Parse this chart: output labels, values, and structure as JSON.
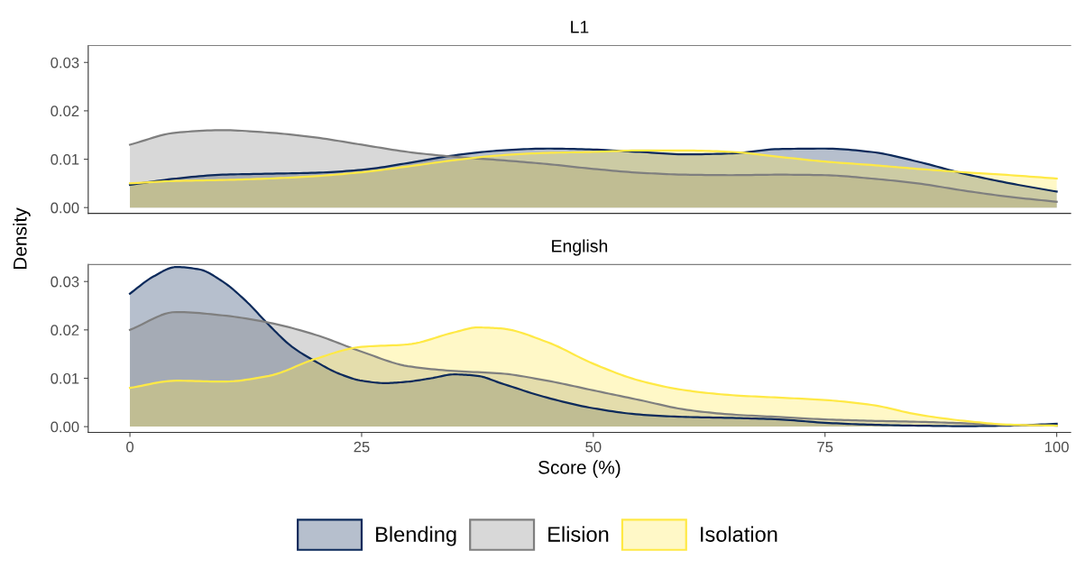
{
  "chart_data": [
    {
      "type": "area",
      "title": "L1",
      "ylabel": "Density",
      "xlim": [
        -4.5,
        101.5
      ],
      "ylim": [
        -0.0012,
        0.0335
      ],
      "yticks": [
        {
          "value": 0,
          "label": "0.00"
        },
        {
          "value": 0.01,
          "label": "0.01"
        },
        {
          "value": 0.02,
          "label": "0.02"
        },
        {
          "value": 0.03,
          "label": "0.03"
        }
      ],
      "xticks": [
        0,
        25,
        50,
        75,
        100
      ],
      "tick_labels": "y",
      "grid": false,
      "legend": "bottom",
      "x": [
        0,
        5,
        10,
        15,
        20,
        25,
        30,
        35,
        40,
        45,
        50,
        55,
        60,
        65,
        70,
        75,
        80,
        85,
        90,
        95,
        100
      ],
      "series": [
        {
          "name": "Blending",
          "color": "#0c2a5b",
          "values": [
            0.0047,
            0.006,
            0.0068,
            0.007,
            0.0072,
            0.0078,
            0.0092,
            0.0108,
            0.0118,
            0.0122,
            0.012,
            0.0115,
            0.011,
            0.0112,
            0.0121,
            0.0122,
            0.0115,
            0.0095,
            0.007,
            0.005,
            0.0033
          ]
        },
        {
          "name": "Elision",
          "color": "#7f7f7f",
          "values": [
            0.013,
            0.0155,
            0.016,
            0.0155,
            0.0145,
            0.013,
            0.0115,
            0.0105,
            0.0098,
            0.009,
            0.008,
            0.0072,
            0.0068,
            0.0067,
            0.0068,
            0.0067,
            0.006,
            0.005,
            0.0035,
            0.0022,
            0.0012
          ]
        },
        {
          "name": "Isolation",
          "color": "#ffe945",
          "values": [
            0.005,
            0.0055,
            0.0057,
            0.006,
            0.0065,
            0.0073,
            0.0085,
            0.0098,
            0.0108,
            0.0113,
            0.0115,
            0.0118,
            0.0118,
            0.0115,
            0.0105,
            0.0095,
            0.0088,
            0.008,
            0.0073,
            0.0067,
            0.006
          ]
        }
      ]
    },
    {
      "type": "area",
      "title": "English",
      "xlabel": "Score (%)",
      "xlim": [
        -4.5,
        101.5
      ],
      "ylim": [
        -0.0012,
        0.0335
      ],
      "yticks": [
        {
          "value": 0,
          "label": "0.00"
        },
        {
          "value": 0.01,
          "label": "0.01"
        },
        {
          "value": 0.02,
          "label": "0.02"
        },
        {
          "value": 0.03,
          "label": "0.03"
        }
      ],
      "xticks": [
        0,
        25,
        50,
        75,
        100
      ],
      "grid": false,
      "series": [
        {
          "color": "#0c2a5b",
          "x": [
            0,
            2.5,
            5,
            7.5,
            10,
            12.5,
            15,
            17.5,
            20,
            22.5,
            25,
            27.5,
            30,
            32.5,
            35,
            37.5,
            40,
            45,
            50,
            55,
            60,
            65,
            70,
            75,
            80,
            85,
            90,
            95,
            100
          ],
          "values": [
            0.0275,
            0.031,
            0.033,
            0.0325,
            0.03,
            0.026,
            0.021,
            0.0165,
            0.0135,
            0.011,
            0.0095,
            0.009,
            0.0093,
            0.01,
            0.0108,
            0.0105,
            0.009,
            0.006,
            0.0038,
            0.0025,
            0.002,
            0.0018,
            0.0015,
            0.0008,
            0.0004,
            0.0002,
            0.0001,
            0.0002,
            0.0006
          ]
        },
        {
          "color": "#7f7f7f",
          "x": [
            0,
            5,
            10,
            15,
            20,
            25,
            30,
            35,
            40,
            45,
            50,
            55,
            60,
            65,
            70,
            75,
            80,
            85,
            90,
            95,
            100
          ],
          "values": [
            0.02,
            0.0237,
            0.023,
            0.0215,
            0.019,
            0.0155,
            0.0125,
            0.0115,
            0.011,
            0.0095,
            0.0075,
            0.0055,
            0.0035,
            0.0025,
            0.002,
            0.0015,
            0.0012,
            0.001,
            0.0007,
            0.0003,
            0.0002
          ]
        },
        {
          "color": "#ffe945",
          "x": [
            0,
            5,
            10,
            15,
            20,
            25,
            30,
            35,
            37.5,
            40,
            45,
            50,
            55,
            60,
            65,
            70,
            75,
            80,
            85,
            90,
            95,
            100
          ],
          "values": [
            0.008,
            0.0095,
            0.0093,
            0.0105,
            0.014,
            0.0165,
            0.017,
            0.0195,
            0.0205,
            0.0203,
            0.0175,
            0.013,
            0.0095,
            0.0075,
            0.0065,
            0.006,
            0.0055,
            0.0045,
            0.0025,
            0.0012,
            0.0004,
            0.0002
          ]
        }
      ]
    }
  ]
}
